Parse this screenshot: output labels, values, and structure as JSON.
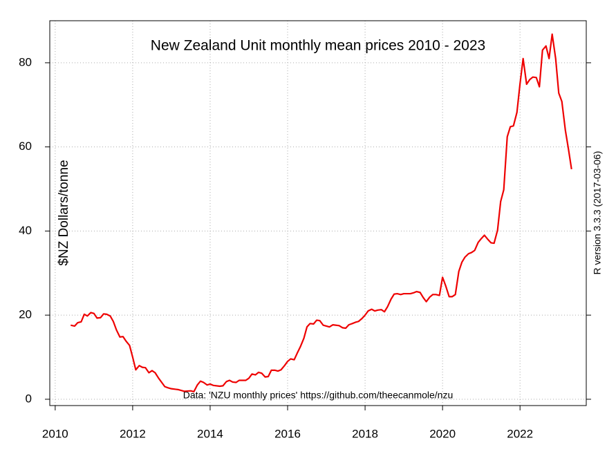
{
  "chart_data": {
    "type": "line",
    "title": "New Zealand Unit monthly mean prices 2010 - 2023",
    "y_label": "$NZ Dollars/tonne",
    "side_note": "R version 3.3.3 (2017-03-06)",
    "annotation": "Data: 'NZU monthly prices' https://github.com/theecanmole/nzu",
    "color": "#ee0000",
    "grid": true,
    "xlim": [
      2009.86,
      2023.71
    ],
    "ylim": [
      -1.5,
      90
    ],
    "xticks": [
      2010,
      2012,
      2014,
      2016,
      2018,
      2020,
      2022
    ],
    "yticks": [
      0,
      20,
      40,
      60,
      80
    ],
    "x": [
      2010.4,
      2010.5,
      2010.58,
      2010.67,
      2010.75,
      2010.83,
      2010.92,
      2011.0,
      2011.08,
      2011.17,
      2011.25,
      2011.33,
      2011.42,
      2011.5,
      2011.58,
      2011.67,
      2011.75,
      2011.83,
      2011.92,
      2012.0,
      2012.08,
      2012.17,
      2012.25,
      2012.33,
      2012.42,
      2012.5,
      2012.58,
      2012.67,
      2012.75,
      2012.83,
      2012.92,
      2013.0,
      2013.17,
      2013.33,
      2013.5,
      2013.58,
      2013.67,
      2013.75,
      2013.83,
      2013.92,
      2014.0,
      2014.08,
      2014.25,
      2014.33,
      2014.42,
      2014.5,
      2014.58,
      2014.67,
      2014.75,
      2014.92,
      2015.0,
      2015.08,
      2015.17,
      2015.25,
      2015.33,
      2015.42,
      2015.5,
      2015.58,
      2015.67,
      2015.75,
      2015.83,
      2015.92,
      2016.0,
      2016.08,
      2016.17,
      2016.25,
      2016.33,
      2016.42,
      2016.5,
      2016.58,
      2016.67,
      2016.75,
      2016.83,
      2016.92,
      2017.0,
      2017.08,
      2017.17,
      2017.33,
      2017.42,
      2017.5,
      2017.58,
      2017.67,
      2017.75,
      2017.83,
      2017.92,
      2018.0,
      2018.08,
      2018.17,
      2018.25,
      2018.33,
      2018.42,
      2018.5,
      2018.58,
      2018.67,
      2018.75,
      2018.83,
      2018.92,
      2019.0,
      2019.17,
      2019.25,
      2019.33,
      2019.42,
      2019.5,
      2019.58,
      2019.67,
      2019.75,
      2019.83,
      2019.92,
      2020.0,
      2020.08,
      2020.17,
      2020.25,
      2020.33,
      2020.42,
      2020.5,
      2020.58,
      2020.67,
      2020.75,
      2020.83,
      2020.92,
      2021.0,
      2021.08,
      2021.17,
      2021.25,
      2021.33,
      2021.42,
      2021.5,
      2021.58,
      2021.67,
      2021.75,
      2021.83,
      2021.92,
      2022.0,
      2022.08,
      2022.17,
      2022.25,
      2022.33,
      2022.42,
      2022.5,
      2022.58,
      2022.67,
      2022.75,
      2022.83,
      2022.92,
      2023.0,
      2023.08,
      2023.17,
      2023.25,
      2023.33
    ],
    "values": [
      17.6,
      17.4,
      18.2,
      18.4,
      20.2,
      19.8,
      20.6,
      20.4,
      19.3,
      19.4,
      20.3,
      20.2,
      19.8,
      18.5,
      16.5,
      14.8,
      14.9,
      13.8,
      12.8,
      10.0,
      7.0,
      8.0,
      7.6,
      7.5,
      6.3,
      6.8,
      6.3,
      5.0,
      4.0,
      3.0,
      2.7,
      2.5,
      2.3,
      1.9,
      2.0,
      1.8,
      3.4,
      4.3,
      4.0,
      3.4,
      3.6,
      3.3,
      3.1,
      3.2,
      4.2,
      4.5,
      4.1,
      4.0,
      4.5,
      4.5,
      5.0,
      6.0,
      5.8,
      6.4,
      6.2,
      5.3,
      5.4,
      6.9,
      6.9,
      6.7,
      7.0,
      8.0,
      9.0,
      9.6,
      9.4,
      11.0,
      12.5,
      14.5,
      17.2,
      18.0,
      17.9,
      18.8,
      18.7,
      17.6,
      17.4,
      17.2,
      17.7,
      17.5,
      17.0,
      16.9,
      17.7,
      18.0,
      18.3,
      18.5,
      19.2,
      20.0,
      21.0,
      21.4,
      21.0,
      21.2,
      21.3,
      20.8,
      22.0,
      23.8,
      25.0,
      25.1,
      24.9,
      25.1,
      25.1,
      25.3,
      25.6,
      25.4,
      24.2,
      23.2,
      24.3,
      24.9,
      24.9,
      24.7,
      29.0,
      27.0,
      24.4,
      24.4,
      24.9,
      30.4,
      32.6,
      33.8,
      34.6,
      34.9,
      35.4,
      37.3,
      38.2,
      39.0,
      38.0,
      37.2,
      37.1,
      40.2,
      47.0,
      49.8,
      62.4,
      64.8,
      65.0,
      68.2,
      75.0,
      81.0,
      74.9,
      76.0,
      76.6,
      76.5,
      74.3,
      83.0,
      84.0,
      81.0,
      86.8,
      81.0,
      72.8,
      70.8,
      64.0,
      59.5,
      54.7
    ]
  }
}
